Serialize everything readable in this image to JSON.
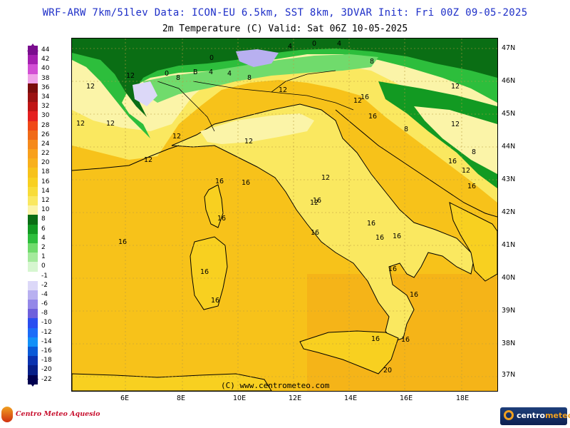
{
  "header": {
    "line1": "WRF-ARW 7km/51lev   Data: ICON-EU 6.5km, SST 8km, 3DVAR   Init: Fri 00Z 09-05-2025",
    "line2": "2m Temperature (C)  Valid: Sat 06Z 10-05-2025"
  },
  "legend": {
    "items": [
      {
        "label": "44",
        "color": "#7a0d8e"
      },
      {
        "label": "42",
        "color": "#a51fb0"
      },
      {
        "label": "40",
        "color": "#d24fd4"
      },
      {
        "label": "38",
        "color": "#f0a3e8"
      },
      {
        "label": "36",
        "color": "#7a0c0c"
      },
      {
        "label": "34",
        "color": "#9b1212"
      },
      {
        "label": "32",
        "color": "#c01515"
      },
      {
        "label": "30",
        "color": "#e52020"
      },
      {
        "label": "28",
        "color": "#f04818"
      },
      {
        "label": "26",
        "color": "#f06a18"
      },
      {
        "label": "24",
        "color": "#f58a1c"
      },
      {
        "label": "22",
        "color": "#f8a01c"
      },
      {
        "label": "20",
        "color": "#f8b01c"
      },
      {
        "label": "18",
        "color": "#f7c21a"
      },
      {
        "label": "16",
        "color": "#f8d020"
      },
      {
        "label": "14",
        "color": "#f8dc38"
      },
      {
        "label": "12",
        "color": "#fae860"
      },
      {
        "label": "10",
        "color": "#fbf4a8"
      },
      {
        "label": "8",
        "color": "#0a6e14"
      },
      {
        "label": "6",
        "color": "#129a22"
      },
      {
        "label": "4",
        "color": "#2dbe3c"
      },
      {
        "label": "2",
        "color": "#70db6c"
      },
      {
        "label": "1",
        "color": "#a4ea9c"
      },
      {
        "label": "0",
        "color": "#d6f6d0"
      },
      {
        "label": "-1",
        "color": "#ffffff"
      },
      {
        "label": "-2",
        "color": "#dcd8f8"
      },
      {
        "label": "-4",
        "color": "#b8b0f0"
      },
      {
        "label": "-6",
        "color": "#9488e8"
      },
      {
        "label": "-8",
        "color": "#6e60dc"
      },
      {
        "label": "-10",
        "color": "#2a4ef0"
      },
      {
        "label": "-12",
        "color": "#1c6cf8"
      },
      {
        "label": "-14",
        "color": "#1290f8"
      },
      {
        "label": "-16",
        "color": "#0a5ad8"
      },
      {
        "label": "-18",
        "color": "#0a32b0"
      },
      {
        "label": "-20",
        "color": "#061e88"
      },
      {
        "label": "-22",
        "color": "#000050"
      }
    ]
  },
  "axes": {
    "lat_labels": [
      "47N",
      "46N",
      "45N",
      "44N",
      "43N",
      "42N",
      "41N",
      "40N",
      "39N",
      "38N",
      "37N"
    ],
    "lon_labels": [
      "6E",
      "8E",
      "10E",
      "12E",
      "14E",
      "16E",
      "18E"
    ]
  },
  "contour_labels": {
    "values": [
      "0",
      "4",
      "4",
      "0",
      "4",
      "8",
      "B",
      "4",
      "0",
      "8",
      "8",
      "12",
      "12",
      "12",
      "12",
      "12",
      "16",
      "12",
      "12",
      "16",
      "12",
      "16",
      "12",
      "16",
      "16",
      "12",
      "12",
      "16",
      "16",
      "16",
      "16",
      "16",
      "16",
      "16",
      "16",
      "16",
      "16",
      "20",
      "16",
      "16",
      "16",
      "16",
      "8",
      "8",
      "12",
      "12",
      "12"
    ]
  },
  "credit": "(C)  www.centrometeo.com",
  "brand_left": "Centro Meteo Aquesio",
  "brand_right_a": "centro",
  "brand_right_b": "meteo",
  "colors": {
    "sea": "#f7c21a",
    "land": "#f8d020",
    "border": "#000000",
    "title": "#1e2fc8"
  }
}
